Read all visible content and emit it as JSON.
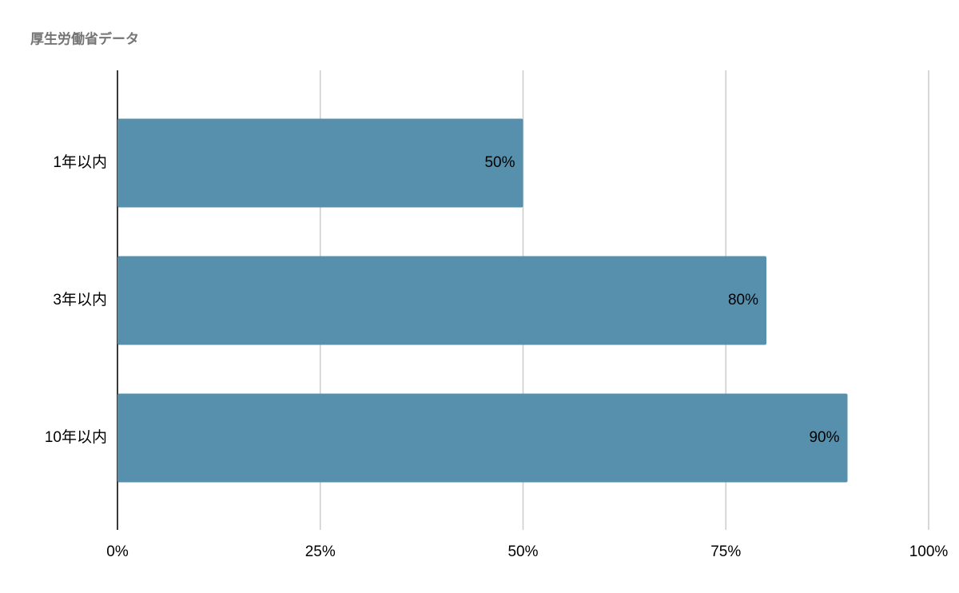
{
  "chart_data": {
    "type": "bar",
    "orientation": "horizontal",
    "title": "厚生労働省データ",
    "categories": [
      "1年以内",
      "3年以内",
      "10年以内"
    ],
    "values": [
      50,
      80,
      90
    ],
    "value_labels": [
      "50%",
      "80%",
      "90%"
    ],
    "color": "#5790ad",
    "xlim": [
      0,
      100
    ],
    "xticks": [
      {
        "value": 0,
        "label": "0%"
      },
      {
        "value": 25,
        "label": "25%"
      },
      {
        "value": 50,
        "label": "50%"
      },
      {
        "value": 75,
        "label": "75%"
      },
      {
        "value": 100,
        "label": "100%"
      }
    ],
    "grid": true
  }
}
